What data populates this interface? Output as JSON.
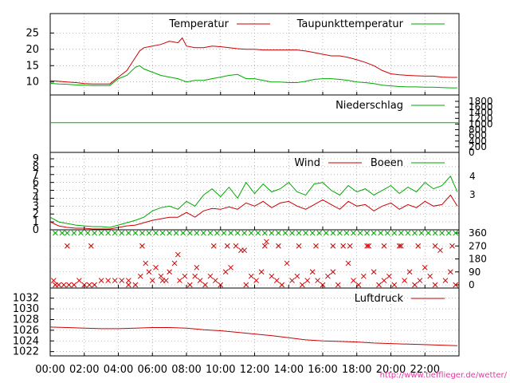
{
  "chart_data": [
    {
      "id": "temperature",
      "type": "line",
      "title": "",
      "xlabel": "",
      "ylabel": "",
      "ylim": [
        7,
        29
      ],
      "yticks": [
        10,
        15,
        20,
        25
      ],
      "grid": true,
      "legend_placement": "top-right",
      "x_hours": [
        0,
        0.5,
        1,
        1.5,
        2,
        2.5,
        3,
        3.5,
        4,
        4.5,
        5,
        5.25,
        5.5,
        6,
        6.5,
        7,
        7.5,
        7.75,
        8,
        8.5,
        9,
        9.5,
        10,
        10.5,
        11,
        11.5,
        12,
        12.5,
        13,
        13.5,
        14,
        14.5,
        15,
        15.5,
        16,
        16.5,
        17,
        17.5,
        18,
        18.5,
        19,
        19.5,
        20,
        20.5,
        21,
        21.5,
        22,
        22.5,
        23,
        23.5,
        23.9
      ],
      "series": [
        {
          "name": "Temperatur",
          "color": "#cc0000",
          "values": [
            10.4,
            10.2,
            10.0,
            9.8,
            9.5,
            9.4,
            9.4,
            9.4,
            11.5,
            13.5,
            17.5,
            19.5,
            20.5,
            21.0,
            21.5,
            22.5,
            22.0,
            23.5,
            21.0,
            20.5,
            20.5,
            21.0,
            20.8,
            20.5,
            20.2,
            20.0,
            20.0,
            19.8,
            19.8,
            19.8,
            19.8,
            19.8,
            19.5,
            19.0,
            18.5,
            18.0,
            18.0,
            17.5,
            16.8,
            16.0,
            15.0,
            13.5,
            12.5,
            12.2,
            12.0,
            11.9,
            11.8,
            11.8,
            11.5,
            11.4,
            11.4
          ]
        },
        {
          "name": "Taupunkttemperatur",
          "color": "#00aa00",
          "values": [
            9.6,
            9.4,
            9.3,
            9.1,
            9.0,
            8.9,
            8.9,
            8.9,
            11.0,
            12.0,
            14.5,
            15.0,
            14.0,
            13.0,
            12.0,
            11.5,
            11.0,
            10.5,
            10.0,
            10.5,
            10.5,
            11.0,
            11.5,
            12.0,
            12.3,
            11.0,
            11.0,
            10.5,
            10.0,
            10.0,
            9.8,
            9.8,
            10.2,
            10.8,
            11.0,
            11.0,
            10.8,
            10.5,
            10.0,
            9.8,
            9.5,
            9.0,
            8.8,
            8.6,
            8.5,
            8.5,
            8.4,
            8.4,
            8.3,
            8.2,
            8.2
          ]
        }
      ]
    },
    {
      "id": "precipitation",
      "type": "line",
      "title": "",
      "xlabel": "",
      "ylabel": "",
      "ylim": [
        0,
        1800
      ],
      "yticks": [
        0,
        200,
        400,
        600,
        800,
        1000,
        1200,
        1400,
        1600,
        1800
      ],
      "grid": false,
      "legend_placement": "top-right",
      "x_hours": [
        0,
        24
      ],
      "series": [
        {
          "name": "Niederschlag",
          "color": "#00aa00",
          "values": [
            1050,
            1050
          ]
        }
      ]
    },
    {
      "id": "wind",
      "type": "line",
      "title": "",
      "xlabel": "",
      "ylabel": "",
      "ylim": [
        0,
        9
      ],
      "yticks": [
        0,
        1,
        2,
        3,
        4,
        5,
        6,
        7,
        8,
        9
      ],
      "y2ticks": [
        3,
        4
      ],
      "grid": true,
      "legend_placement": "top-right",
      "x_hours": [
        0,
        0.5,
        1,
        1.5,
        2,
        2.5,
        3,
        3.5,
        4,
        4.5,
        5,
        5.5,
        6,
        6.5,
        7,
        7.5,
        8,
        8.5,
        9,
        9.5,
        10,
        10.5,
        11,
        11.5,
        12,
        12.5,
        13,
        13.5,
        14,
        14.5,
        15,
        15.5,
        16,
        16.5,
        17,
        17.5,
        18,
        18.5,
        19,
        19.5,
        20,
        20.5,
        21,
        21.5,
        22,
        22.5,
        23,
        23.5,
        23.9
      ],
      "series": [
        {
          "name": "Wind",
          "color": "#cc0000",
          "values": [
            1.0,
            0.5,
            0.3,
            0.2,
            0.2,
            0.1,
            0.1,
            0.1,
            0.3,
            0.5,
            0.6,
            0.9,
            1.2,
            1.4,
            1.6,
            1.6,
            2.2,
            1.6,
            2.4,
            2.7,
            2.6,
            2.9,
            2.6,
            3.4,
            3.0,
            3.6,
            2.8,
            3.4,
            3.6,
            3.0,
            2.6,
            3.2,
            3.8,
            3.2,
            2.6,
            3.6,
            3.0,
            3.2,
            2.4,
            3.0,
            3.4,
            2.6,
            3.2,
            2.8,
            3.6,
            3.0,
            3.2,
            4.4,
            3.0
          ]
        },
        {
          "name": "Boeen",
          "color": "#00aa00",
          "values": [
            1.6,
            1.0,
            0.8,
            0.6,
            0.5,
            0.4,
            0.4,
            0.3,
            0.6,
            0.9,
            1.2,
            1.6,
            2.4,
            2.8,
            3.0,
            2.6,
            3.6,
            3.0,
            4.4,
            5.2,
            4.2,
            5.4,
            4.0,
            6.0,
            4.6,
            5.8,
            4.8,
            5.2,
            6.0,
            4.8,
            4.4,
            5.8,
            6.0,
            5.0,
            4.4,
            5.6,
            4.8,
            5.2,
            4.4,
            5.0,
            5.6,
            4.6,
            5.4,
            4.8,
            6.0,
            5.2,
            5.6,
            6.8,
            4.8
          ]
        }
      ]
    },
    {
      "id": "wind_direction",
      "type": "scatter",
      "title": "",
      "xlabel": "",
      "ylabel": "",
      "ylim": [
        0,
        360
      ],
      "yticks": [
        0,
        90,
        180,
        270,
        360
      ],
      "grid": true,
      "series": [
        {
          "name": "",
          "color": "#cc0000",
          "x_hours": [
            0.2,
            0.5,
            0.8,
            1.1,
            1.4,
            1.7,
            2.0,
            2.3,
            2.6,
            3.0,
            3.4,
            3.8,
            4.2,
            4.6,
            5.0,
            5.3,
            5.6,
            5.8,
            6.0,
            6.2,
            6.5,
            6.8,
            7.0,
            7.3,
            7.6,
            7.9,
            8.2,
            8.5,
            8.8,
            9.1,
            9.4,
            9.7,
            10.0,
            10.3,
            10.6,
            10.9,
            11.2,
            11.5,
            11.8,
            12.1,
            12.4,
            12.7,
            13.0,
            13.3,
            13.6,
            13.9,
            14.2,
            14.5,
            14.8,
            15.1,
            15.4,
            15.7,
            16.0,
            16.3,
            16.6,
            16.9,
            17.2,
            17.5,
            17.8,
            18.1,
            18.4,
            18.7,
            19.0,
            19.3,
            19.6,
            19.9,
            20.2,
            20.5,
            20.8,
            21.1,
            21.4,
            21.7,
            22.0,
            22.3,
            22.6,
            22.9,
            23.2,
            23.5,
            23.8,
            0.3,
            1.0,
            2.4,
            4.6,
            5.4,
            6.6,
            7.5,
            8.6,
            9.6,
            10.4,
            11.4,
            12.6,
            13.4,
            14.6,
            15.6,
            16.6,
            17.6,
            18.6,
            19.6,
            20.6,
            21.6,
            22.6,
            23.6
          ],
          "values": [
            30,
            0,
            0,
            0,
            0,
            30,
            0,
            0,
            0,
            30,
            30,
            30,
            30,
            30,
            0,
            60,
            150,
            90,
            30,
            120,
            60,
            30,
            90,
            150,
            30,
            60,
            0,
            60,
            30,
            0,
            60,
            30,
            0,
            90,
            120,
            270,
            240,
            0,
            60,
            30,
            90,
            300,
            60,
            30,
            0,
            150,
            30,
            60,
            0,
            30,
            90,
            30,
            0,
            60,
            90,
            0,
            270,
            150,
            30,
            0,
            60,
            270,
            90,
            0,
            30,
            60,
            0,
            270,
            30,
            90,
            0,
            30,
            120,
            60,
            0,
            240,
            30,
            90,
            0,
            0,
            270,
            270,
            0,
            270,
            30,
            210,
            120,
            270,
            270,
            240,
            270,
            270,
            270,
            270,
            270,
            270,
            270,
            270,
            270,
            270,
            270,
            270
          ]
        },
        {
          "name": "",
          "color": "#00aa00",
          "x_hours": [
            0.3,
            0.7,
            1.0,
            1.4,
            1.8,
            2.2,
            2.6,
            3.0,
            3.4,
            3.8,
            4.2,
            4.6,
            5.0,
            5.4,
            5.8,
            6.2,
            6.6,
            7.0,
            7.4,
            7.8,
            8.2,
            8.6,
            9.0,
            9.4,
            9.8,
            10.2,
            10.6,
            11.0,
            11.4,
            11.8,
            12.2,
            12.6,
            13.0,
            13.4,
            13.8,
            14.2,
            14.6,
            15.0,
            15.4,
            15.8,
            16.2,
            16.6,
            17.0,
            17.4,
            17.8,
            18.2,
            18.6,
            19.0,
            19.4,
            19.8,
            20.2,
            20.6,
            21.0,
            21.4,
            21.8,
            22.2,
            22.6,
            23.0,
            23.4,
            23.8
          ],
          "values": [
            360,
            360,
            360,
            360,
            360,
            360,
            360,
            360,
            360,
            360,
            360,
            360,
            360,
            360,
            360,
            360,
            360,
            360,
            360,
            360,
            360,
            360,
            360,
            360,
            360,
            360,
            360,
            360,
            360,
            360,
            360,
            360,
            360,
            360,
            360,
            360,
            360,
            360,
            360,
            360,
            360,
            360,
            360,
            360,
            360,
            360,
            360,
            360,
            360,
            360,
            360,
            360,
            360,
            360,
            360,
            360,
            360,
            360,
            360,
            360
          ]
        }
      ]
    },
    {
      "id": "pressure",
      "type": "line",
      "title": "",
      "xlabel": "",
      "ylabel": "",
      "ylim": [
        1021.5,
        1033
      ],
      "yticks": [
        1022,
        1024,
        1026,
        1028,
        1030,
        1032
      ],
      "grid": true,
      "legend_placement": "top-right",
      "x_hours": [
        0,
        1,
        2,
        3,
        4,
        5,
        6,
        7,
        8,
        9,
        10,
        11,
        12,
        13,
        14,
        15,
        16,
        17,
        18,
        19,
        20,
        21,
        22,
        23,
        23.9
      ],
      "series": [
        {
          "name": "Luftdruck",
          "color": "#cc0000",
          "values": [
            1026.6,
            1026.5,
            1026.4,
            1026.3,
            1026.3,
            1026.4,
            1026.5,
            1026.5,
            1026.4,
            1026.1,
            1025.9,
            1025.6,
            1025.3,
            1025.0,
            1024.6,
            1024.2,
            1024.0,
            1023.9,
            1023.8,
            1023.6,
            1023.5,
            1023.4,
            1023.3,
            1023.2,
            1023.1
          ]
        }
      ]
    }
  ],
  "x_axis": {
    "range_hours": [
      0,
      24
    ],
    "tick_hours": [
      0,
      2,
      4,
      6,
      8,
      10,
      12,
      14,
      16,
      18,
      20,
      22
    ],
    "tick_labels": [
      "00:00",
      "02:00",
      "04:00",
      "06:00",
      "08:00",
      "10:00",
      "12:00",
      "14:00",
      "16:00",
      "18:00",
      "20:00",
      "22:00"
    ]
  },
  "footer": {
    "url_text": "http://www.tiefflieger.de/wetter/"
  }
}
